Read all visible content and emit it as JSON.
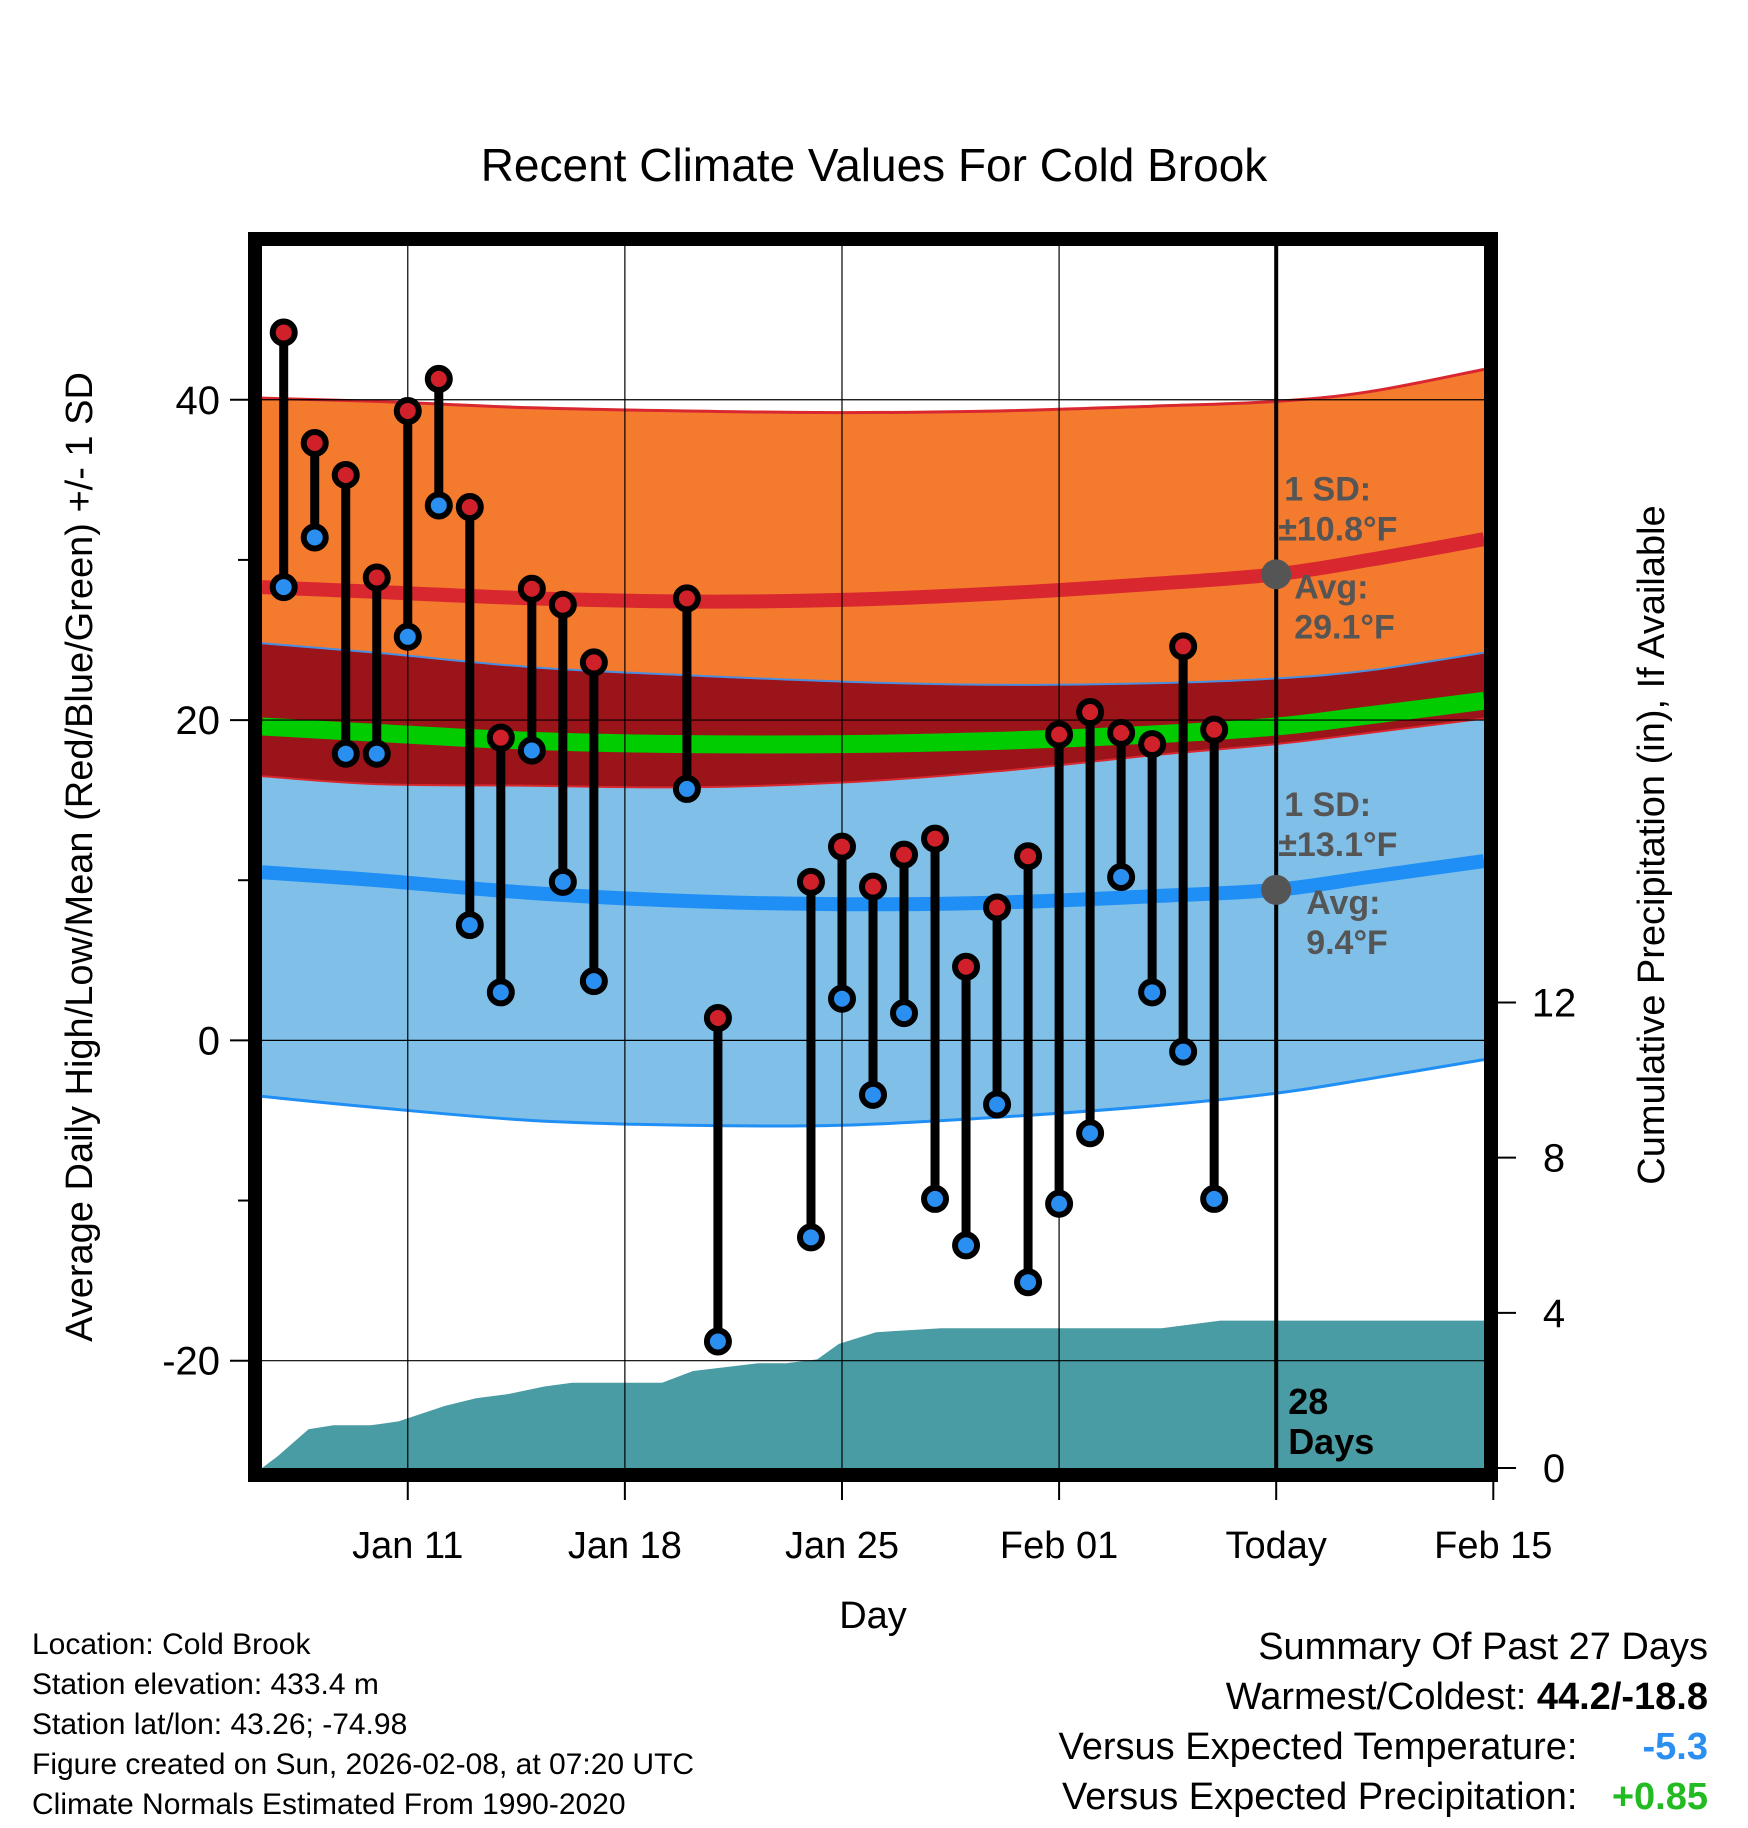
{
  "chart_data": {
    "type": "line",
    "title": "Recent Climate Values For Cold Brook",
    "xlabel": "Day",
    "ylabel_left": "Average Daily High/Low/Mean (Red/Blue/Green) +/- 1 SD",
    "ylabel_right": "Cumulative Precipitation (in), If Available",
    "x_range": [
      6.3,
      45.7
    ],
    "ylim_left": [
      -26.7,
      49.6
    ],
    "ylim_right": [
      0,
      31.5
    ],
    "x_ticks": [
      {
        "day": 11,
        "label": "Jan 11"
      },
      {
        "day": 18,
        "label": "Jan 18"
      },
      {
        "day": 25,
        "label": "Jan 25"
      },
      {
        "day": 32,
        "label": "Feb 01"
      },
      {
        "day": 39,
        "label": "Today"
      },
      {
        "day": 46,
        "label": "Feb 15"
      }
    ],
    "y_ticks_left": [
      {
        "value": 40,
        "label": "40"
      },
      {
        "value": 20,
        "label": "20"
      },
      {
        "value": 0,
        "label": "0"
      },
      {
        "value": -20,
        "label": "-20"
      }
    ],
    "y_minor_left": [
      30,
      10,
      -10
    ],
    "y_ticks_right": [
      {
        "value": 0,
        "label": "0"
      },
      {
        "value": 4,
        "label": "4"
      },
      {
        "value": 8,
        "label": "8"
      },
      {
        "value": 12,
        "label": "12"
      }
    ],
    "today_day": 39,
    "high_normals": {
      "days": [
        6.3,
        10,
        15,
        20,
        25,
        30,
        35,
        39,
        42,
        45.7
      ],
      "avg": [
        28.3,
        28.0,
        27.6,
        27.4,
        27.5,
        27.9,
        28.5,
        29.1,
        30.0,
        31.3
      ],
      "upper": [
        40.1,
        39.9,
        39.5,
        39.3,
        39.2,
        39.3,
        39.6,
        39.9,
        40.5,
        41.9
      ],
      "lower": [
        24.8,
        24.2,
        23.3,
        22.8,
        22.4,
        22.2,
        22.3,
        22.6,
        23.1,
        24.2
      ]
    },
    "mean_normals": {
      "days": [
        6.3,
        10,
        15,
        20,
        25,
        30,
        35,
        39,
        42,
        45.7
      ],
      "avg": [
        19.6,
        19.2,
        18.7,
        18.5,
        18.5,
        18.7,
        19.1,
        19.6,
        20.3,
        21.2
      ]
    },
    "low_normals": {
      "days": [
        6.3,
        10,
        15,
        20,
        25,
        30,
        35,
        39,
        42,
        45.7
      ],
      "avg": [
        10.5,
        10.0,
        9.2,
        8.7,
        8.5,
        8.6,
        9.0,
        9.4,
        10.2,
        11.2
      ],
      "upper": [
        16.5,
        16.0,
        15.9,
        15.8,
        16.1,
        16.8,
        17.8,
        18.5,
        19.2,
        20.1
      ],
      "lower": [
        -3.5,
        -4.2,
        -5.0,
        -5.3,
        -5.3,
        -4.8,
        -4.1,
        -3.3,
        -2.4,
        -1.2
      ]
    },
    "observed": {
      "days": [
        7,
        8,
        9,
        10,
        11,
        12,
        13,
        14,
        15,
        16,
        17,
        20,
        21,
        24,
        25,
        26,
        27,
        28,
        29,
        30,
        31,
        32,
        33,
        34,
        35,
        36,
        37
      ],
      "highs": [
        44.2,
        37.3,
        35.3,
        28.9,
        39.3,
        41.3,
        33.3,
        18.9,
        28.2,
        27.2,
        23.6,
        27.6,
        1.4,
        9.9,
        12.1,
        9.6,
        11.6,
        12.6,
        4.6,
        8.3,
        11.5,
        19.1,
        20.5,
        19.2,
        18.5,
        24.6,
        19.4
      ],
      "lows": [
        28.3,
        31.4,
        17.9,
        17.9,
        25.2,
        33.4,
        7.2,
        3.0,
        18.1,
        9.9,
        3.7,
        15.7,
        -18.8,
        -12.3,
        2.6,
        -3.4,
        1.7,
        -9.9,
        -12.8,
        -4.0,
        -15.1,
        -10.2,
        -5.8,
        10.2,
        3.0,
        -0.7,
        -9.9
      ]
    },
    "precip_cumulative": {
      "days": [
        6.3,
        6.8,
        7.8,
        8.6,
        9.8,
        10.7,
        12.2,
        13.2,
        14.2,
        15.4,
        16.3,
        17.3,
        19.2,
        20.2,
        22.3,
        23.2,
        24.2,
        24.9,
        26.1,
        28.2,
        32.1,
        35.3,
        37.2,
        45.7
      ],
      "values": [
        0.0,
        0.3,
        1.0,
        1.1,
        1.1,
        1.2,
        1.6,
        1.8,
        1.9,
        2.1,
        2.2,
        2.2,
        2.2,
        2.5,
        2.7,
        2.7,
        2.8,
        3.2,
        3.5,
        3.6,
        3.6,
        3.6,
        3.8,
        3.8
      ]
    },
    "annotations": {
      "high_sd": "1 SD:",
      "high_sd_val": "±10.8°F",
      "high_avg": "Avg:",
      "high_avg_val": "29.1°F",
      "low_sd": "1 SD:",
      "low_sd_val": "±13.1°F",
      "low_avg": "Avg:",
      "low_avg_val": "9.4°F",
      "days_num": "28",
      "days_word": "Days"
    },
    "colors": {
      "high_band": "#f47a2d",
      "high_avg": "#d8272f",
      "overlap": "#9a1419",
      "mean": "#00cc00",
      "low_band": "#80c0e8",
      "low_avg": "#1f8ff5",
      "precip": "#4a9ca4",
      "high_dot": "#d0212b",
      "low_dot": "#2a8ff0",
      "annot": "#555555"
    }
  },
  "info": {
    "location": "Location: Cold Brook",
    "elevation": "Station elevation: 433.4 m",
    "latlon": "Station lat/lon: 43.26; -74.98",
    "created": "Figure created on Sun, 2026-02-08, at 07:20 UTC",
    "normals": "Climate Normals Estimated From 1990-2020"
  },
  "summary": {
    "heading": "Summary Of Past 27 Days",
    "warm_cold_label": "Warmest/Coldest: ",
    "warm_cold_value": "44.2/-18.8",
    "temp_label": "Versus Expected Temperature: ",
    "temp_value": "-5.3",
    "temp_color": "#2a8ff0",
    "precip_label": "Versus Expected Precipitation: ",
    "precip_value": "+0.85",
    "precip_color": "#22bb22"
  }
}
